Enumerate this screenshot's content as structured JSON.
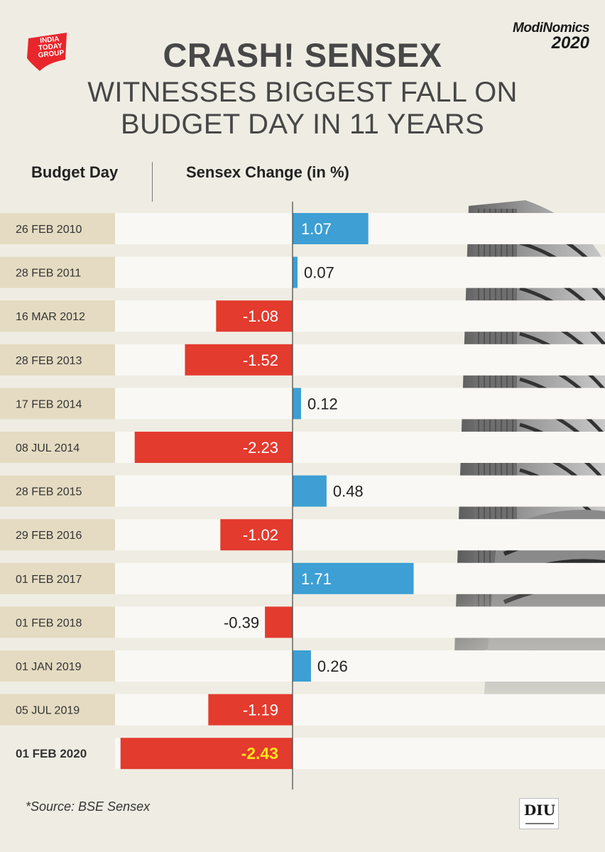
{
  "brand": {
    "logo_lines": [
      "INDIA",
      "TODAY",
      "GROUP"
    ],
    "series_name": "ModiNomics",
    "series_year": "2020",
    "corner_badge": "DIU"
  },
  "headline": {
    "line1": "CRASH! SENSEX",
    "line2": "WITNESSES BIGGEST FALL ON",
    "line3": "BUDGET DAY IN 11 YEARS"
  },
  "source": "*Source: BSE Sensex",
  "colors": {
    "positive": "#3d9fd3",
    "negative": "#e33b2e",
    "highlight_text": "#ffe419",
    "date_cell": "#e4dbc2",
    "row_track": "#f9f8f4",
    "axis": "#444444"
  },
  "chart_data": {
    "type": "bar",
    "orientation": "horizontal",
    "title": "CRASH! SENSEX WITNESSES BIGGEST FALL ON BUDGET DAY IN 11 YEARS",
    "xlabel": "Sensex Change (in %)",
    "ylabel": "Budget Day",
    "categories": [
      "26 FEB 2010",
      "28 FEB 2011",
      "16 MAR 2012",
      "28 FEB 2013",
      "17 FEB 2014",
      "08 JUL 2014",
      "28 FEB 2015",
      "29 FEB 2016",
      "01 FEB 2017",
      "01 FEB 2018",
      "01 JAN 2019",
      "05 JUL 2019",
      "01 FEB 2020"
    ],
    "values": [
      1.07,
      0.07,
      -1.08,
      -1.52,
      0.12,
      -2.23,
      0.48,
      -1.02,
      1.71,
      -0.39,
      0.26,
      -1.19,
      -2.43
    ],
    "labels": [
      "1.07",
      "0.07",
      "-1.08",
      "-1.52",
      "0.12",
      "-2.23",
      "0.48",
      "-1.02",
      "1.71",
      "-0.39",
      "0.26",
      "-1.19",
      "-2.43"
    ],
    "highlight": "01 FEB 2020",
    "xlim": [
      -2.45,
      1.75
    ],
    "legend": "none",
    "grid": false
  }
}
